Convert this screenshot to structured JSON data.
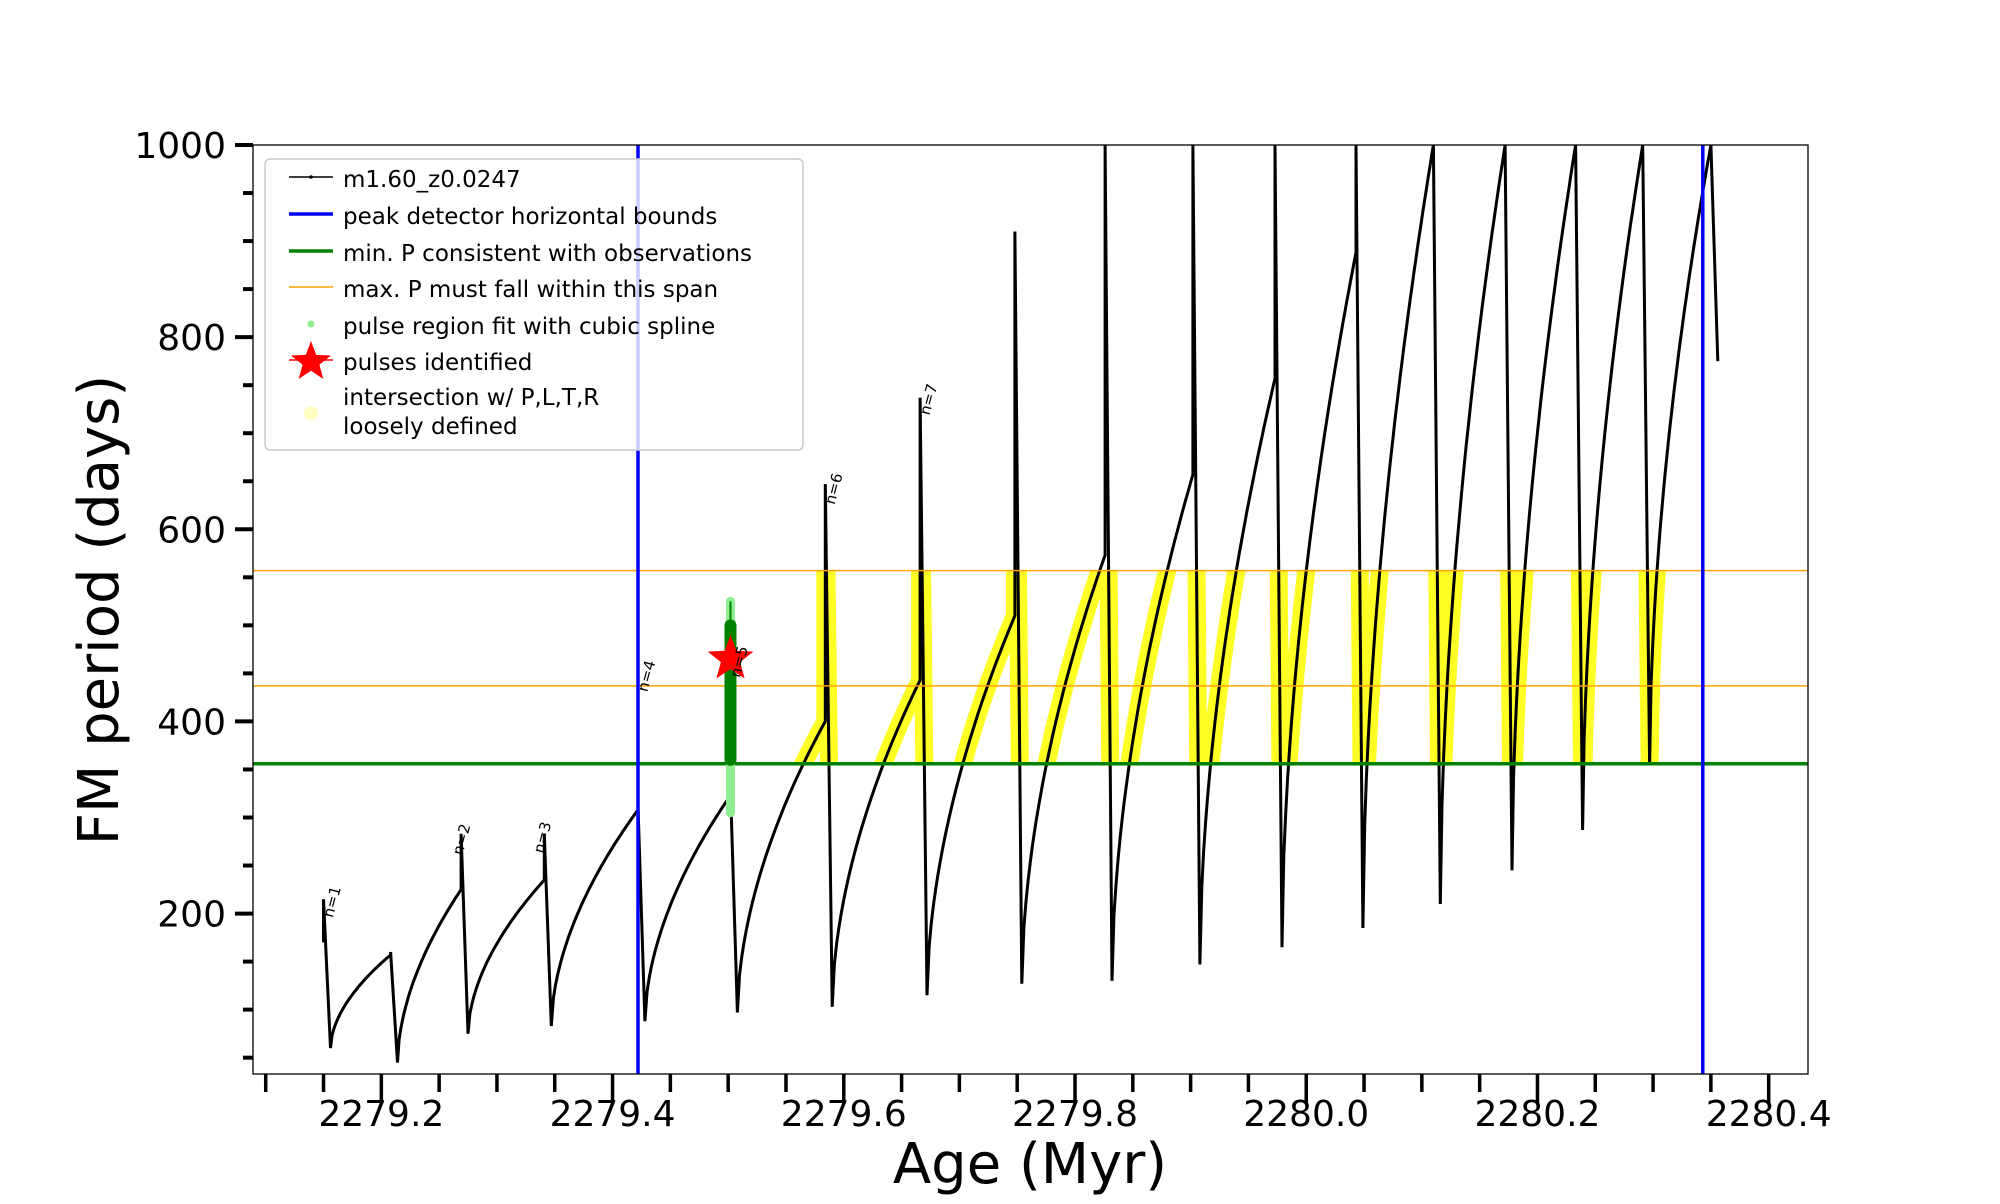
{
  "chart_data": {
    "type": "line",
    "xlabel": "Age (Myr)",
    "ylabel": "FM period (days)",
    "xlim": [
      2279.089,
      2280.434
    ],
    "ylim": [
      33,
      1000
    ],
    "xticks": [
      "2279.2",
      "2279.4",
      "2279.6",
      "2279.8",
      "2280.0",
      "2280.2",
      "2280.4"
    ],
    "xtick_values": [
      2279.2,
      2279.4,
      2279.6,
      2279.8,
      2280.0,
      2280.2,
      2280.4
    ],
    "yticks": [
      "200",
      "400",
      "600",
      "800",
      "1000"
    ],
    "ytick_values": [
      200,
      400,
      600,
      800,
      1000
    ],
    "grid": false,
    "legend_position": "top-left",
    "legend": [
      "m1.60_z0.0247",
      "peak detector horizontal bounds",
      "min. P consistent with observations",
      "max. P must fall within this span",
      "pulse region fit with cubic spline",
      "pulses identified",
      "intersection w/ P,L,T,R\nloosely defined"
    ],
    "legend_lines": [
      "intersection w/ P,L,T,R",
      "loosely defined"
    ],
    "colors": {
      "model": "#000000",
      "bounds": "#0000ff",
      "minP": "#008000",
      "maxP": "#ffa500",
      "spline": "#90ee90",
      "pulse": "#ff0000",
      "intersection": "#ffff00"
    },
    "series_name": "m1.60_z0.0247",
    "start": {
      "age": 2279.15,
      "P": 170
    },
    "pulses": [
      {
        "age": 2279.15,
        "pre": 170,
        "spike": 215,
        "dip": 60
      },
      {
        "age": 2279.208,
        "pre": 157,
        "spike": 160,
        "dip": 45
      },
      {
        "age": 2279.269,
        "pre": 225,
        "spike": 283,
        "dip": 75
      },
      {
        "age": 2279.341,
        "pre": 235,
        "spike": 283,
        "dip": 83
      },
      {
        "age": 2279.422,
        "pre": 308,
        "spike": 312,
        "dip": 88
      },
      {
        "age": 2279.502,
        "pre": 323,
        "spike": 330,
        "dip": 97
      },
      {
        "age": 2279.584,
        "pre": 400,
        "spike": 647,
        "dip": 103
      },
      {
        "age": 2279.666,
        "pre": 443,
        "spike": 737,
        "dip": 115
      },
      {
        "age": 2279.748,
        "pre": 510,
        "spike": 910,
        "dip": 127
      },
      {
        "age": 2279.826,
        "pre": 573,
        "spike": 1000,
        "dip": 130
      },
      {
        "age": 2279.902,
        "pre": 657,
        "spike": 1000,
        "dip": 147
      },
      {
        "age": 2279.973,
        "pre": 757,
        "spike": 1000,
        "dip": 165
      },
      {
        "age": 2280.043,
        "pre": 888,
        "spike": 1000,
        "dip": 185
      },
      {
        "age": 2280.11,
        "pre": 1000,
        "spike": 1000,
        "dip": 210
      },
      {
        "age": 2280.172,
        "pre": 1000,
        "spike": 1000,
        "dip": 245
      },
      {
        "age": 2280.233,
        "pre": 1000,
        "spike": 1000,
        "dip": 287
      },
      {
        "age": 2280.291,
        "pre": 1000,
        "spike": 1000,
        "dip": 355
      },
      {
        "age": 2280.35,
        "pre": 1000,
        "spike": 1000,
        "dip": 775
      }
    ],
    "peak_detector_bounds": [
      2279.422,
      2280.343
    ],
    "min_P": 356,
    "max_P_span": [
      437,
      557
    ],
    "spline_region": {
      "age": 2279.502,
      "P_range": [
        305,
        525
      ]
    },
    "pulses_identified": [
      {
        "age": 2279.502,
        "P": 465
      }
    ],
    "pulse_labels": [
      {
        "text": "n=1",
        "age": 2279.158,
        "P": 195
      },
      {
        "text": "n=2",
        "age": 2279.27,
        "P": 260
      },
      {
        "text": "n=3",
        "age": 2279.34,
        "P": 262
      },
      {
        "text": "n=4",
        "age": 2279.43,
        "P": 430
      },
      {
        "text": "n=5",
        "age": 2279.51,
        "P": 445
      },
      {
        "text": "n=6",
        "age": 2279.592,
        "P": 625
      },
      {
        "text": "n=7",
        "age": 2279.674,
        "P": 718
      }
    ]
  }
}
